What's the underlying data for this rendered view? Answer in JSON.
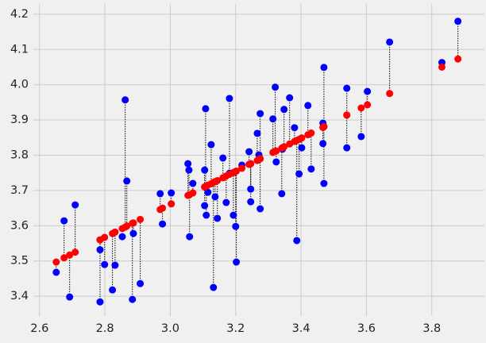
{
  "chart_data": {
    "type": "scatter",
    "x": [
      2.651,
      2.675,
      2.692,
      2.709,
      2.785,
      2.785,
      2.799,
      2.823,
      2.831,
      2.853,
      2.862,
      2.867,
      2.884,
      2.887,
      2.908,
      2.969,
      2.976,
      3.003,
      3.054,
      3.057,
      3.059,
      3.069,
      3.108,
      3.105,
      3.105,
      3.11,
      3.115,
      3.125,
      3.132,
      3.137,
      3.144,
      3.161,
      3.171,
      3.181,
      3.181,
      3.193,
      3.2,
      3.202,
      3.219,
      3.241,
      3.246,
      3.246,
      3.266,
      3.271,
      3.275,
      3.275,
      3.314,
      3.321,
      3.324,
      3.341,
      3.343,
      3.348,
      3.365,
      3.38,
      3.387,
      3.394,
      3.402,
      3.421,
      3.431,
      3.47,
      3.467,
      3.467,
      3.47,
      3.54,
      3.54,
      3.584,
      3.603,
      3.671,
      3.831,
      3.88
    ],
    "series": [
      {
        "color": "#0000ff",
        "values": [
          3.468,
          3.614,
          3.398,
          3.659,
          3.532,
          3.384,
          3.49,
          3.418,
          3.488,
          3.569,
          3.957,
          3.727,
          3.391,
          3.578,
          3.436,
          3.691,
          3.605,
          3.693,
          3.776,
          3.758,
          3.569,
          3.72,
          3.932,
          3.758,
          3.657,
          3.63,
          3.695,
          3.83,
          3.425,
          3.682,
          3.621,
          3.792,
          3.666,
          3.961,
          3.749,
          3.63,
          3.598,
          3.497,
          3.772,
          3.81,
          3.704,
          3.668,
          3.862,
          3.801,
          3.918,
          3.648,
          3.903,
          3.993,
          3.781,
          3.691,
          3.817,
          3.93,
          3.963,
          3.878,
          3.558,
          3.747,
          3.821,
          3.941,
          3.761,
          4.049,
          3.891,
          3.833,
          3.72,
          3.99,
          3.821,
          3.853,
          3.981,
          4.121,
          4.063,
          4.18
        ]
      },
      {
        "color": "#ff0000",
        "values": [
          3.497,
          3.509,
          3.517,
          3.525,
          3.56,
          3.56,
          3.567,
          3.578,
          3.582,
          3.592,
          3.596,
          3.599,
          3.607,
          3.608,
          3.618,
          3.646,
          3.65,
          3.662,
          3.686,
          3.687,
          3.688,
          3.693,
          3.711,
          3.71,
          3.71,
          3.712,
          3.715,
          3.719,
          3.723,
          3.725,
          3.728,
          3.736,
          3.741,
          3.746,
          3.746,
          3.751,
          3.754,
          3.755,
          3.763,
          3.774,
          3.776,
          3.776,
          3.785,
          3.788,
          3.79,
          3.79,
          3.808,
          3.811,
          3.812,
          3.82,
          3.821,
          3.824,
          3.832,
          3.839,
          3.842,
          3.845,
          3.849,
          3.858,
          3.863,
          3.881,
          3.879,
          3.879,
          3.881,
          3.914,
          3.914,
          3.934,
          3.943,
          3.975,
          4.05,
          4.073
        ]
      }
    ],
    "xlim": [
      2.581,
      3.961
    ],
    "ylim": [
      3.344,
      4.229
    ],
    "xticks": [
      2.6,
      2.8,
      {
        "value": 3,
        "label": "3.0"
      },
      3.2,
      3.4,
      3.6,
      3.8
    ],
    "yticks": [
      3.4,
      3.5,
      3.6,
      3.7,
      3.8,
      3.9,
      {
        "value": 4,
        "label": "4.0"
      },
      4.1,
      4.2
    ],
    "grid": true
  }
}
